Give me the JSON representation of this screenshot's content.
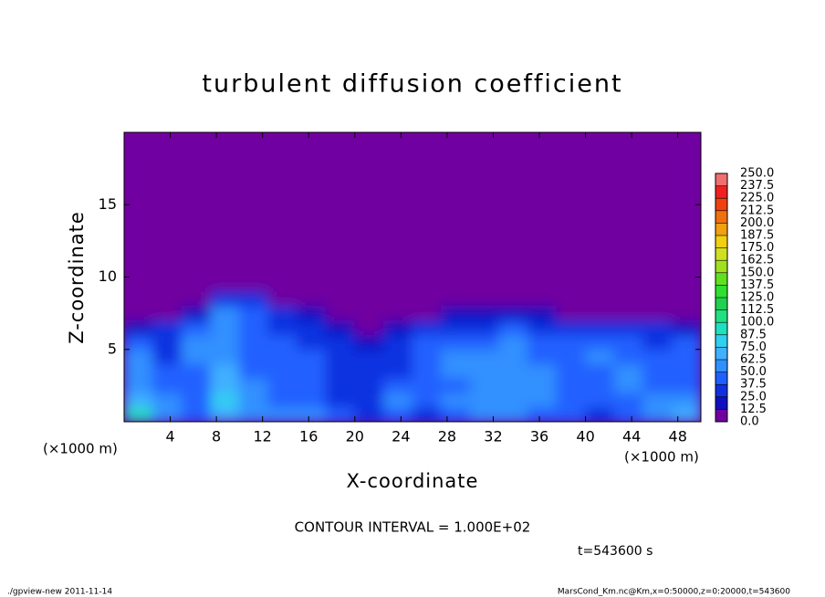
{
  "chart_data": {
    "type": "heatmap",
    "title": "turbulent diffusion coefficient",
    "x_label": "X-coordinate",
    "y_label": "Z-coordinate",
    "unit_label": "(×1000 m)",
    "annotation": "CONTOUR INTERVAL = 1.000E+02",
    "time_label": "t=543600 s",
    "footer_left": "./gpview-new  2011-11-14",
    "footer_right": "MarsCond_Km.nc@Km,x=0:50000,z=0:20000,t=543600",
    "xlim": [
      0,
      50
    ],
    "ylim": [
      0,
      20
    ],
    "xticks": [
      4,
      8,
      12,
      16,
      20,
      24,
      28,
      32,
      36,
      40,
      44,
      48
    ],
    "yticks": [
      5,
      10,
      15
    ],
    "x_bins": [
      0,
      2.5,
      5,
      7.5,
      10,
      12.5,
      15,
      17.5,
      20,
      22.5,
      25,
      27.5,
      30,
      32.5,
      35,
      37.5,
      40,
      42.5,
      45,
      47.5,
      50
    ],
    "y_bins": [
      0,
      1,
      2,
      3,
      4,
      5,
      6,
      7,
      8,
      9,
      20
    ],
    "values": [
      [
        90,
        60,
        45,
        70,
        60,
        55,
        50,
        40,
        30,
        40,
        35,
        45,
        55,
        50,
        45,
        40,
        35,
        45,
        50,
        70
      ],
      [
        70,
        50,
        40,
        75,
        55,
        45,
        45,
        35,
        30,
        55,
        40,
        50,
        60,
        55,
        50,
        45,
        40,
        45,
        50,
        55
      ],
      [
        55,
        45,
        40,
        70,
        50,
        40,
        40,
        35,
        35,
        40,
        45,
        45,
        60,
        55,
        50,
        45,
        45,
        50,
        45,
        45
      ],
      [
        50,
        40,
        45,
        65,
        45,
        40,
        40,
        30,
        30,
        35,
        40,
        50,
        55,
        55,
        50,
        45,
        45,
        50,
        40,
        45
      ],
      [
        50,
        35,
        50,
        60,
        45,
        40,
        40,
        30,
        25,
        30,
        40,
        50,
        50,
        55,
        45,
        40,
        50,
        45,
        40,
        45
      ],
      [
        40,
        35,
        55,
        55,
        40,
        40,
        35,
        25,
        20,
        25,
        40,
        45,
        45,
        50,
        40,
        40,
        45,
        40,
        35,
        40
      ],
      [
        20,
        25,
        45,
        50,
        45,
        35,
        30,
        15,
        10,
        15,
        30,
        35,
        35,
        40,
        35,
        35,
        35,
        30,
        30,
        20
      ],
      [
        0,
        0,
        15,
        50,
        40,
        30,
        15,
        0,
        0,
        0,
        10,
        15,
        15,
        15,
        15,
        10,
        10,
        5,
        5,
        0
      ],
      [
        0,
        0,
        0,
        30,
        35,
        5,
        0,
        0,
        0,
        0,
        0,
        0,
        0,
        0,
        0,
        0,
        0,
        0,
        0,
        0
      ],
      [
        0,
        0,
        0,
        0,
        0,
        0,
        0,
        0,
        0,
        0,
        0,
        0,
        0,
        0,
        0,
        0,
        0,
        0,
        0,
        0
      ]
    ],
    "colorbar": {
      "lim": [
        0,
        250
      ],
      "ticks": [
        {
          "value": 0,
          "label": "0.0"
        },
        {
          "value": 12.5,
          "label": "12.5"
        },
        {
          "value": 25,
          "label": "25.0"
        },
        {
          "value": 37.5,
          "label": "37.5"
        },
        {
          "value": 50,
          "label": "50.0"
        },
        {
          "value": 62.5,
          "label": "62.5"
        },
        {
          "value": 75,
          "label": "75.0"
        },
        {
          "value": 87.5,
          "label": "87.5"
        },
        {
          "value": 100,
          "label": "100.0"
        },
        {
          "value": 112.5,
          "label": "112.5"
        },
        {
          "value": 125,
          "label": "125.0"
        },
        {
          "value": 137.5,
          "label": "137.5"
        },
        {
          "value": 150,
          "label": "150.0"
        },
        {
          "value": 162.5,
          "label": "162.5"
        },
        {
          "value": 175,
          "label": "175.0"
        },
        {
          "value": 187.5,
          "label": "187.5"
        },
        {
          "value": 200,
          "label": "200.0"
        },
        {
          "value": 212.5,
          "label": "212.5"
        },
        {
          "value": 225,
          "label": "225.0"
        },
        {
          "value": 237.5,
          "label": "237.5"
        },
        {
          "value": 250,
          "label": "250.0"
        }
      ],
      "colors": [
        "#7000a0",
        "#1010c0",
        "#1030e0",
        "#2060ff",
        "#3090ff",
        "#40b0ff",
        "#30d0f0",
        "#20e0c0",
        "#20e080",
        "#20d050",
        "#30e030",
        "#60e020",
        "#a0e020",
        "#d0e020",
        "#f0d010",
        "#f0a010",
        "#f07010",
        "#f04010",
        "#f02020",
        "#f07070"
      ]
    }
  }
}
